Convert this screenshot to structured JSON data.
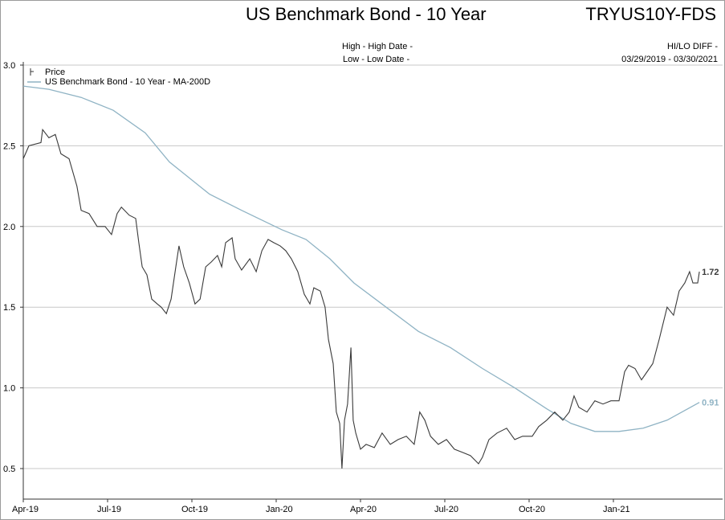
{
  "header": {
    "title": "US Benchmark Bond - 10 Year",
    "ticker": "TRYUS10Y-FDS",
    "high_label": "High - High Date -",
    "low_label": "Low - Low Date -",
    "hilo_diff": "HI/LO DIFF -",
    "date_range": "03/29/2019 - 03/30/2021"
  },
  "chart_data": {
    "type": "line",
    "title": "US Benchmark Bond - 10 Year",
    "x_unit": "months since Apr-19",
    "xlim": [
      -0.1,
      24.8
    ],
    "ylim": [
      0.31,
      3.08
    ],
    "grid": true,
    "legend_placement": "top-left",
    "y_ticks": [
      0.5,
      1.0,
      1.5,
      2.0,
      2.5,
      3.0
    ],
    "y_tick_labels": [
      "0.5",
      "1.0",
      "1.5",
      "2.0",
      "2.5",
      "3.0"
    ],
    "x_ticks": [
      0,
      3,
      6,
      9,
      12,
      15,
      18,
      21
    ],
    "x_tick_labels": [
      "Apr-19",
      "Jul-19",
      "Oct-19",
      "Jan-20",
      "Apr-20",
      "Jul-20",
      "Oct-20",
      "Jan-21"
    ],
    "series": [
      {
        "name": "Price",
        "color": "#3a3a3a",
        "last_label": "1.72",
        "x": [
          0,
          0.2,
          0.63,
          0.69,
          0.91,
          1.14,
          1.34,
          1.63,
          1.91,
          2.06,
          2.34,
          2.63,
          2.91,
          3.14,
          3.34,
          3.49,
          3.77,
          4.0,
          4.11,
          4.23,
          4.4,
          4.57,
          4.77,
          4.91,
          5.09,
          5.26,
          5.43,
          5.54,
          5.71,
          5.91,
          6.11,
          6.29,
          6.49,
          6.69,
          6.91,
          7.06,
          7.2,
          7.43,
          7.54,
          7.77,
          8.06,
          8.29,
          8.49,
          8.71,
          8.91,
          9.14,
          9.34,
          9.54,
          9.77,
          10.0,
          10.2,
          10.34,
          10.57,
          10.74,
          10.86,
          11.03,
          11.14,
          11.26,
          11.34,
          11.43,
          11.54,
          11.66,
          11.74,
          11.83,
          12.0,
          12.2,
          12.49,
          12.77,
          13.06,
          13.34,
          13.63,
          13.91,
          14.11,
          14.29,
          14.49,
          14.77,
          15.06,
          15.34,
          15.63,
          15.91,
          16.2,
          16.34,
          16.57,
          16.86,
          17.2,
          17.49,
          17.77,
          18.11,
          18.34,
          18.63,
          18.91,
          19.2,
          19.43,
          19.6,
          19.77,
          20.06,
          20.34,
          20.63,
          20.91,
          21.2,
          21.4,
          21.54,
          21.77,
          22.0,
          22.2,
          22.4,
          22.63,
          22.91,
          23.14,
          23.34,
          23.54,
          23.71,
          23.83,
          24.0,
          24.06
        ],
        "y": [
          2.42,
          2.5,
          2.52,
          2.6,
          2.55,
          2.57,
          2.45,
          2.42,
          2.25,
          2.1,
          2.08,
          2.0,
          2.0,
          1.95,
          2.08,
          2.12,
          2.07,
          2.05,
          1.9,
          1.75,
          1.7,
          1.55,
          1.52,
          1.5,
          1.46,
          1.55,
          1.75,
          1.88,
          1.75,
          1.65,
          1.52,
          1.55,
          1.75,
          1.78,
          1.82,
          1.75,
          1.9,
          1.93,
          1.8,
          1.73,
          1.8,
          1.72,
          1.85,
          1.92,
          1.9,
          1.88,
          1.85,
          1.8,
          1.72,
          1.58,
          1.52,
          1.62,
          1.6,
          1.5,
          1.3,
          1.15,
          0.85,
          0.78,
          0.5,
          0.8,
          0.9,
          1.25,
          0.8,
          0.72,
          0.62,
          0.65,
          0.63,
          0.72,
          0.65,
          0.68,
          0.7,
          0.65,
          0.85,
          0.8,
          0.7,
          0.65,
          0.68,
          0.62,
          0.6,
          0.58,
          0.53,
          0.57,
          0.68,
          0.72,
          0.75,
          0.68,
          0.7,
          0.7,
          0.76,
          0.8,
          0.85,
          0.8,
          0.85,
          0.95,
          0.88,
          0.85,
          0.92,
          0.9,
          0.92,
          0.92,
          1.1,
          1.14,
          1.12,
          1.05,
          1.1,
          1.15,
          1.3,
          1.5,
          1.45,
          1.6,
          1.65,
          1.72,
          1.65,
          1.65,
          1.72
        ]
      },
      {
        "name": "US Benchmark Bond - 10 Year - MA-200D",
        "color": "#8fb3c4",
        "last_label": "0.91",
        "x": [
          0,
          0.91,
          2.06,
          3.2,
          4.34,
          5.2,
          6.63,
          7.77,
          9.2,
          10.06,
          10.91,
          11.77,
          12.91,
          14.06,
          15.2,
          16.34,
          17.49,
          18.63,
          19.49,
          20.34,
          21.2,
          22.06,
          22.91,
          24.06
        ],
        "y": [
          2.87,
          2.85,
          2.8,
          2.72,
          2.58,
          2.4,
          2.2,
          2.1,
          1.98,
          1.92,
          1.8,
          1.65,
          1.5,
          1.35,
          1.25,
          1.12,
          1.0,
          0.87,
          0.78,
          0.73,
          0.73,
          0.75,
          0.8,
          0.91
        ]
      }
    ]
  }
}
